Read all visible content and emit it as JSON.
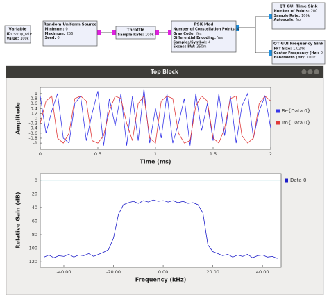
{
  "flowgraph": {
    "blocks": [
      {
        "title": "Variable",
        "params": [
          {
            "key": "ID:",
            "value": "samp_rate"
          },
          {
            "key": "Value:",
            "value": "100k"
          }
        ]
      },
      {
        "title": "Random Uniform Source",
        "params": [
          {
            "key": "Minimum:",
            "value": 0
          },
          {
            "key": "Maximum:",
            "value": 256
          },
          {
            "key": "Seed:",
            "value": 0
          }
        ]
      },
      {
        "title": "Throttle",
        "params": [
          {
            "key": "Sample Rate:",
            "value": "100k"
          }
        ]
      },
      {
        "title": "PSK Mod",
        "params": [
          {
            "key": "Number of Constellation Points:",
            "value": 4
          },
          {
            "key": "Gray Code:",
            "value": "Yes"
          },
          {
            "key": "Differential Encoding:",
            "value": "Yes"
          },
          {
            "key": "Samples/Symbol:",
            "value": 4
          },
          {
            "key": "Excess BW:",
            "value": "350m"
          }
        ]
      },
      {
        "title": "QT GUI Time Sink",
        "params": [
          {
            "key": "Number of Points:",
            "value": 200
          },
          {
            "key": "Sample Rate:",
            "value": "100k"
          },
          {
            "key": "Autoscale:",
            "value": "No"
          }
        ]
      },
      {
        "title": "QT GUI Frequency Sink",
        "params": [
          {
            "key": "FFT Size:",
            "value": "1.024k"
          },
          {
            "key": "Center Frequency (Hz):",
            "value": 0
          },
          {
            "key": "Bandwidth (Hz):",
            "value": "100k"
          }
        ]
      }
    ]
  },
  "window": {
    "title": "Top Block"
  },
  "chart_data": [
    {
      "type": "line",
      "xlabel": "Time (ms)",
      "ylabel": "Amplitude",
      "x": [
        0,
        0.05,
        0.1,
        0.15,
        0.2,
        0.25,
        0.3,
        0.35,
        0.4,
        0.45,
        0.5,
        0.55,
        0.6,
        0.65,
        0.7,
        0.75,
        0.8,
        0.85,
        0.9,
        0.95,
        1,
        1.05,
        1.1,
        1.15,
        1.2,
        1.25,
        1.3,
        1.35,
        1.4,
        1.45,
        1.5,
        1.55,
        1.6,
        1.65,
        1.7,
        1.75,
        1.8,
        1.85,
        1.9,
        1.95,
        2
      ],
      "series": [
        {
          "name": "Re{Data 0}",
          "color": "#3636e8",
          "values": [
            0.9,
            -0.6,
            0.3,
            1,
            -0.8,
            -1,
            0.6,
            0.9,
            -0.9,
            0.2,
            1.1,
            -1.1,
            0.8,
            -0.3,
            1,
            -1.1,
            0.9,
            -0.9,
            1.2,
            -1,
            0.4,
            -0.8,
            1,
            -1,
            -0.2,
            0.8,
            -1.1,
            1,
            -0.5,
            0.6,
            -0.9,
            1,
            -0.7,
            0.9,
            -1,
            0.5,
            1,
            -0.8,
            0.3,
            0.9,
            -0.4
          ]
        },
        {
          "name": "Im{Data 0}",
          "color": "#e03a3a",
          "values": [
            -0.2,
            0.7,
            0.9,
            -0.8,
            -1,
            -0.6,
            0.8,
            0.9,
            0.7,
            -0.9,
            -1,
            -0.7,
            0.3,
            0.9,
            0.8,
            -0.2,
            -0.9,
            0.6,
            0.9,
            -0.8,
            -1,
            0.7,
            0.9,
            0.8,
            -0.6,
            -1,
            -0.9,
            0.5,
            0.9,
            0.7,
            -0.8,
            -1,
            -0.4,
            0.8,
            0.9,
            -0.7,
            -1,
            -0.8,
            0.6,
            0.9,
            0.7
          ]
        }
      ],
      "xlim": [
        0,
        2
      ],
      "xticks": [
        0,
        0.5,
        1,
        1.5,
        2
      ],
      "ylim": [
        -1.25,
        1.25
      ],
      "yticks": [
        1,
        0.8,
        0.6,
        0.4,
        0.2,
        0,
        -0.2,
        -0.4,
        -0.6,
        -0.8,
        -1
      ],
      "legend": "right"
    },
    {
      "type": "line",
      "xlabel": "Frequency (kHz)",
      "ylabel": "Relative Gain (dB)",
      "x": [
        -48,
        -46,
        -44,
        -42,
        -40,
        -38,
        -36,
        -34,
        -32,
        -30,
        -28,
        -26,
        -24,
        -22,
        -20,
        -18,
        -16,
        -14,
        -12,
        -10,
        -8,
        -6,
        -4,
        -2,
        0,
        2,
        4,
        6,
        8,
        10,
        12,
        14,
        16,
        18,
        20,
        22,
        24,
        26,
        28,
        30,
        32,
        34,
        36,
        38,
        40,
        42,
        44,
        46
      ],
      "series": [
        {
          "name": "Data 0",
          "color": "#1c1cc8",
          "values": [
            -113,
            -110,
            -114,
            -111,
            -112,
            -109,
            -113,
            -110,
            -111,
            -108,
            -112,
            -109,
            -106,
            -102,
            -85,
            -50,
            -36,
            -33,
            -31,
            -34,
            -30,
            -32,
            -29,
            -31,
            -30,
            -32,
            -30,
            -33,
            -31,
            -34,
            -33,
            -36,
            -48,
            -95,
            -105,
            -108,
            -111,
            -109,
            -113,
            -110,
            -112,
            -109,
            -114,
            -111,
            -110,
            -113,
            -112,
            -115
          ]
        }
      ],
      "xlim": [
        -49.5,
        47.5
      ],
      "xticks": [
        {
          "value": -40,
          "label": "-40.00"
        },
        {
          "value": -20,
          "label": "-20.00"
        },
        {
          "value": 0,
          "label": "0.00"
        },
        {
          "value": 20,
          "label": "20.00"
        },
        {
          "value": 40,
          "label": "40.00"
        }
      ],
      "ylim": [
        -128,
        10
      ],
      "yticks": [
        0,
        -20,
        -40,
        -60,
        -80,
        -100,
        -120
      ],
      "legend": "right"
    }
  ]
}
